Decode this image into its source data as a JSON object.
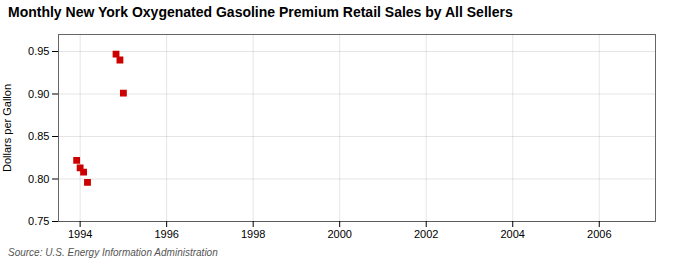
{
  "chart_data": {
    "type": "scatter",
    "title": "Monthly New York Oxygenated Gasoline Premium Retail Sales by All Sellers",
    "ylabel": "Dollars per Gallon",
    "annotations": [
      "Source: U.S. Energy Information Administration"
    ],
    "x": [
      1993.92,
      1994.0,
      1994.08,
      1994.17,
      1994.83,
      1994.92,
      1995.0
    ],
    "values": [
      0.822,
      0.813,
      0.808,
      0.796,
      0.947,
      0.94,
      0.901
    ],
    "color": "#cc0000",
    "marker": "square",
    "xlim": [
      1993.5,
      2007.3
    ],
    "xticks": [
      1994,
      1996,
      1998,
      2000,
      2002,
      2004,
      2006
    ],
    "ylim": [
      0.75,
      0.97
    ],
    "yticks": [
      0.75,
      {
        "value": 0.8,
        "label": "0.80"
      },
      0.85,
      {
        "value": 0.9,
        "label": "0.90"
      },
      0.95
    ],
    "grid": true
  }
}
